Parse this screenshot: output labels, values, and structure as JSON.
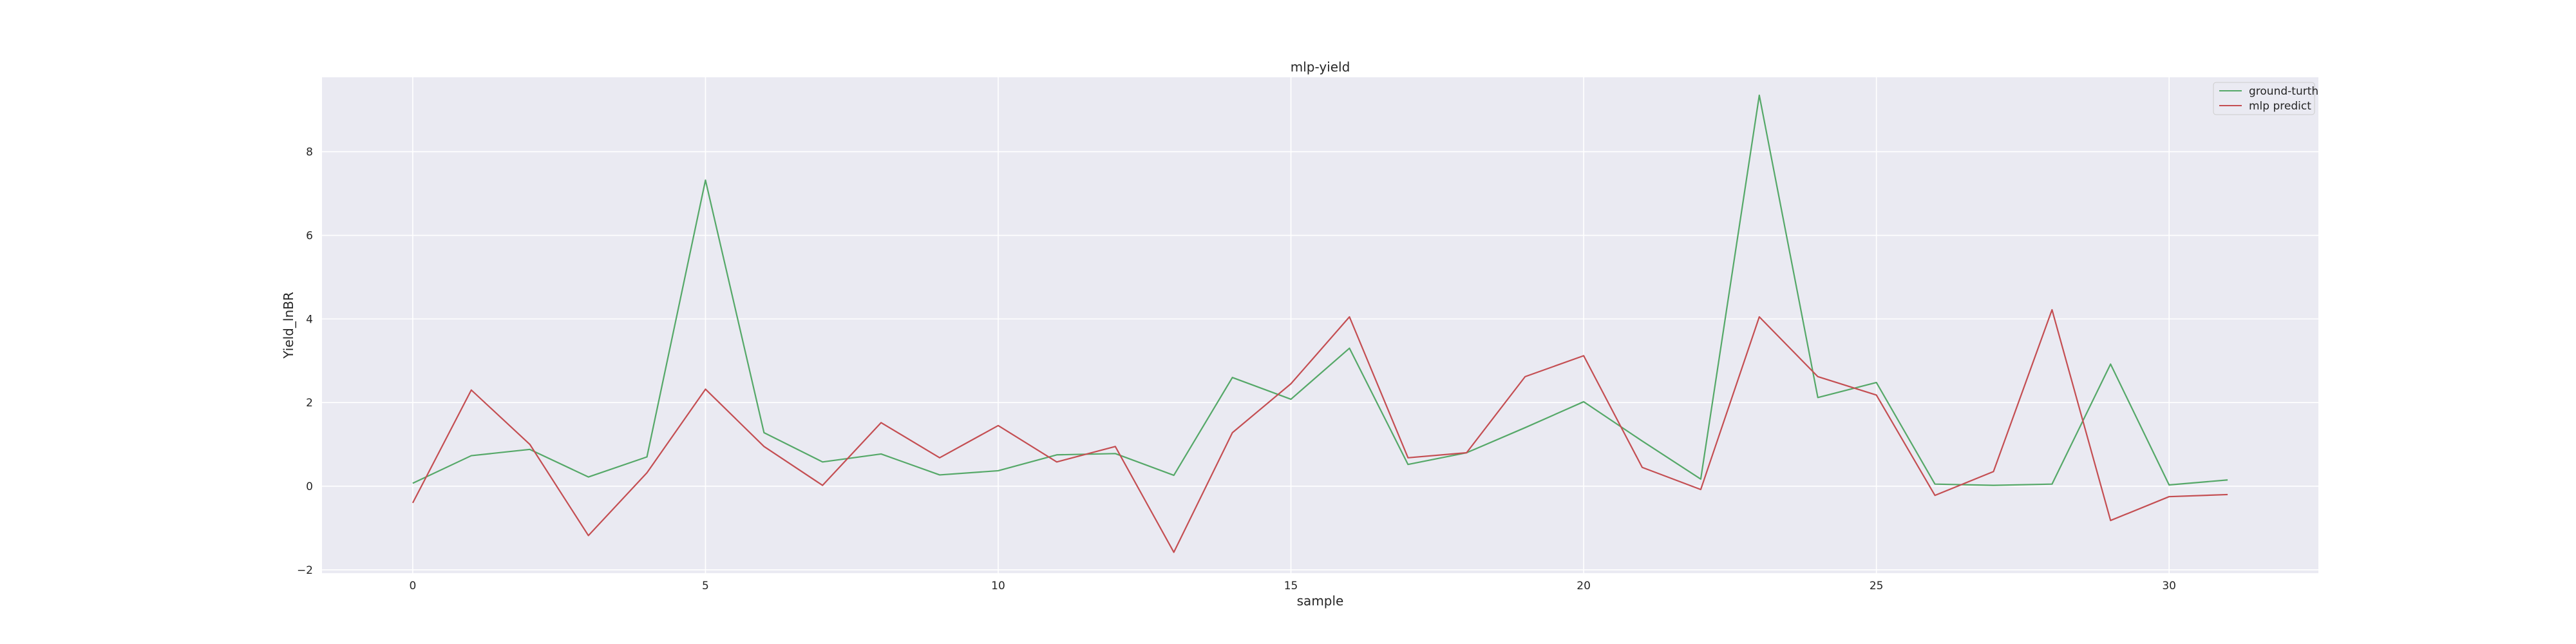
{
  "chart_data": {
    "type": "line",
    "title": "mlp-yield",
    "xlabel": "sample",
    "ylabel": "Yield_lnBR",
    "x": [
      0,
      1,
      2,
      3,
      4,
      5,
      6,
      7,
      8,
      9,
      10,
      11,
      12,
      13,
      14,
      15,
      16,
      17,
      18,
      19,
      20,
      21,
      22,
      23,
      24,
      25,
      26,
      27,
      28,
      29,
      30,
      31
    ],
    "xlim": [
      -1.55,
      32.55
    ],
    "ylim": [
      -2.08,
      9.78
    ],
    "xticks": [
      0,
      5,
      10,
      15,
      20,
      25,
      30
    ],
    "yticks": [
      -2,
      0,
      2,
      4,
      6,
      8
    ],
    "ytick_labels": [
      "−2",
      "0",
      "2",
      "4",
      "6",
      "8"
    ],
    "grid": true,
    "legend_position": "top-right",
    "series": [
      {
        "name": "ground-turth",
        "color": "#55a868",
        "values": [
          0.07,
          0.73,
          0.88,
          0.22,
          0.7,
          7.32,
          1.28,
          0.58,
          0.77,
          0.27,
          0.37,
          0.75,
          0.78,
          0.26,
          2.6,
          2.08,
          3.3,
          0.52,
          0.8,
          1.4,
          2.02,
          1.08,
          0.17,
          9.35,
          2.12,
          2.48,
          0.05,
          0.02,
          0.05,
          2.92,
          0.03,
          0.15
        ]
      },
      {
        "name": "mlp predict",
        "color": "#c44e52",
        "values": [
          -0.4,
          2.3,
          1.0,
          -1.18,
          0.32,
          2.32,
          0.95,
          0.02,
          1.52,
          0.68,
          1.45,
          0.58,
          0.95,
          -1.58,
          1.28,
          2.45,
          4.05,
          0.68,
          0.8,
          2.62,
          3.12,
          0.45,
          -0.08,
          4.05,
          2.62,
          2.18,
          -0.22,
          0.35,
          4.22,
          -0.82,
          -0.25,
          -0.2
        ]
      }
    ]
  }
}
